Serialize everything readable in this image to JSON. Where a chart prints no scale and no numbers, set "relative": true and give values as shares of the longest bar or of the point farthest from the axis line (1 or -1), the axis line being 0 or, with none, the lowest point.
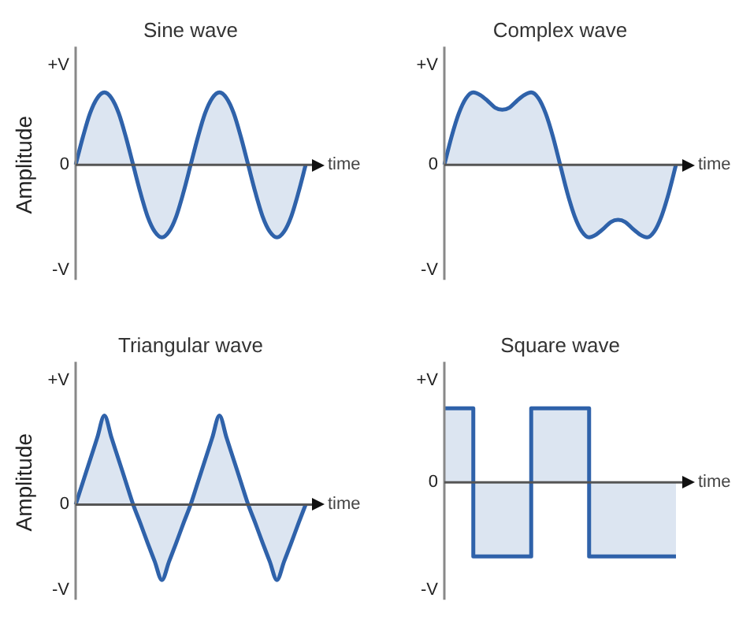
{
  "chart_data": [
    {
      "type": "area",
      "relative": true,
      "title": "Sine wave",
      "ylabel": "Amplitude",
      "xlabel": "time",
      "grid": false,
      "annotations": [
        "+V",
        "0",
        "-V"
      ],
      "categories": [
        null,
        null,
        null,
        null,
        null,
        null,
        null,
        null,
        null,
        null,
        null,
        null,
        null,
        null,
        null,
        null,
        null,
        null,
        null,
        null,
        null,
        null,
        null,
        null,
        null,
        null,
        null,
        null,
        null,
        null,
        null,
        null,
        null
      ],
      "series": [
        {
          "color": "#2f62aa",
          "values": [
            0,
            0.38,
            0.71,
            0.92,
            1,
            0.92,
            0.71,
            0.38,
            0,
            -0.38,
            -0.71,
            -0.92,
            -1,
            -0.92,
            -0.71,
            -0.38,
            0,
            0.38,
            0.71,
            0.92,
            1,
            0.92,
            0.71,
            0.38,
            0,
            -0.38,
            -0.71,
            -0.92,
            -1,
            -0.92,
            -0.71,
            -0.38,
            0
          ]
        }
      ]
    },
    {
      "type": "area",
      "relative": true,
      "title": "Complex wave",
      "xlabel": "time",
      "grid": false,
      "annotations": [
        "+V",
        "0",
        "-V"
      ],
      "categories": [
        null,
        null,
        null,
        null,
        null,
        null,
        null,
        null,
        null,
        null,
        null,
        null,
        null,
        null,
        null,
        null,
        null,
        null,
        null,
        null,
        null,
        null,
        null,
        null,
        null,
        null,
        null,
        null,
        null,
        null,
        null,
        null,
        null
      ],
      "series": [
        {
          "color": "#2f62aa",
          "values": [
            0,
            0.39,
            0.71,
            0.92,
            1,
            0.96,
            0.88,
            0.79,
            0.76,
            0.79,
            0.88,
            0.96,
            1,
            0.92,
            0.71,
            0.39,
            0,
            -0.39,
            -0.71,
            -0.92,
            -1,
            -0.96,
            -0.88,
            -0.79,
            -0.76,
            -0.79,
            -0.88,
            -0.96,
            -1,
            -0.92,
            -0.71,
            -0.39,
            0
          ]
        }
      ]
    },
    {
      "type": "area",
      "relative": true,
      "title": "Triangular wave",
      "ylabel": "Amplitude",
      "xlabel": "time",
      "grid": false,
      "annotations": [
        "+V",
        "0",
        "-V"
      ],
      "categories": [
        null,
        null,
        null,
        null,
        null,
        null,
        null,
        null,
        null,
        null,
        null,
        null,
        null,
        null,
        null,
        null,
        null,
        null,
        null,
        null,
        null,
        null,
        null,
        null,
        null,
        null,
        null,
        null,
        null,
        null,
        null,
        null,
        null
      ],
      "series": [
        {
          "color": "#2f62aa",
          "values": [
            0,
            0.25,
            0.5,
            0.75,
            1,
            0.75,
            0.5,
            0.25,
            0,
            -0.21,
            -0.43,
            -0.64,
            -0.85,
            -0.64,
            -0.43,
            -0.21,
            0,
            0.25,
            0.5,
            0.75,
            1,
            0.75,
            0.5,
            0.25,
            0,
            -0.21,
            -0.43,
            -0.64,
            -0.85,
            -0.64,
            -0.43,
            -0.21,
            0
          ]
        }
      ]
    },
    {
      "type": "step",
      "relative": true,
      "title": "Square wave",
      "xlabel": "time",
      "grid": false,
      "annotations": [
        "+V",
        "0",
        "-V"
      ],
      "categories": [
        null,
        null,
        null,
        null,
        null,
        null,
        null,
        null,
        null
      ],
      "series": [
        {
          "color": "#2f62aa",
          "values": [
            1,
            1,
            -1,
            -1,
            1,
            1,
            -1,
            -1,
            -1
          ]
        }
      ]
    }
  ]
}
